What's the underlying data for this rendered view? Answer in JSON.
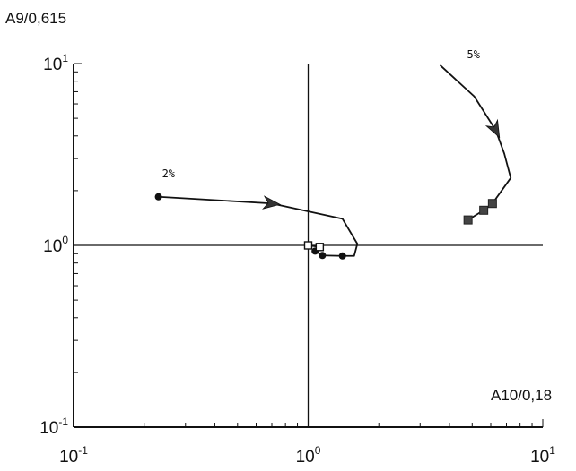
{
  "chart_data": {
    "type": "line",
    "xscale": "log",
    "yscale": "log",
    "xlim": [
      0.1,
      10
    ],
    "ylim": [
      0.1,
      10
    ],
    "ylabel": "A9/0,615",
    "xlabel": "A10/0,18",
    "x_ticks": [
      {
        "value": 0.1,
        "base": "10",
        "exp": "-1"
      },
      {
        "value": 1,
        "base": "10",
        "exp": "0"
      },
      {
        "value": 10,
        "base": "10",
        "exp": "1"
      }
    ],
    "y_ticks": [
      {
        "value": 0.1,
        "base": "10",
        "exp": "-1"
      },
      {
        "value": 1,
        "base": "10",
        "exp": "0"
      },
      {
        "value": 10,
        "base": "10",
        "exp": "1"
      }
    ],
    "reference_lines": {
      "x": 1,
      "y": 1
    },
    "grid": false,
    "series": [
      {
        "name": "2%",
        "color": "#111111",
        "points": [
          {
            "x": 0.23,
            "y": 1.85,
            "marker": "dot"
          },
          {
            "x": 0.7,
            "y": 1.7,
            "marker": "arrow"
          },
          {
            "x": 1.4,
            "y": 1.4,
            "marker": "none"
          },
          {
            "x": 1.62,
            "y": 1.02,
            "marker": "none"
          },
          {
            "x": 1.57,
            "y": 0.875,
            "marker": "none"
          },
          {
            "x": 1.4,
            "y": 0.875,
            "marker": "dot"
          },
          {
            "x": 1.15,
            "y": 0.88,
            "marker": "dot"
          },
          {
            "x": 1.07,
            "y": 0.93,
            "marker": "dot"
          },
          {
            "x": 1.12,
            "y": 0.98,
            "marker": "open-square"
          },
          {
            "x": 1.0,
            "y": 1.0,
            "marker": "open-square"
          }
        ]
      },
      {
        "name": "5%",
        "color": "#111111",
        "points": [
          {
            "x": 3.65,
            "y": 9.8,
            "marker": "none"
          },
          {
            "x": 5.1,
            "y": 6.6,
            "marker": "none"
          },
          {
            "x": 6.3,
            "y": 4.3,
            "marker": "arrow"
          },
          {
            "x": 6.85,
            "y": 3.2,
            "marker": "none"
          },
          {
            "x": 7.3,
            "y": 2.35,
            "marker": "none"
          },
          {
            "x": 6.1,
            "y": 1.7,
            "marker": "filled-square"
          },
          {
            "x": 5.6,
            "y": 1.56,
            "marker": "filled-square"
          },
          {
            "x": 4.8,
            "y": 1.38,
            "marker": "filled-square"
          }
        ]
      }
    ]
  }
}
